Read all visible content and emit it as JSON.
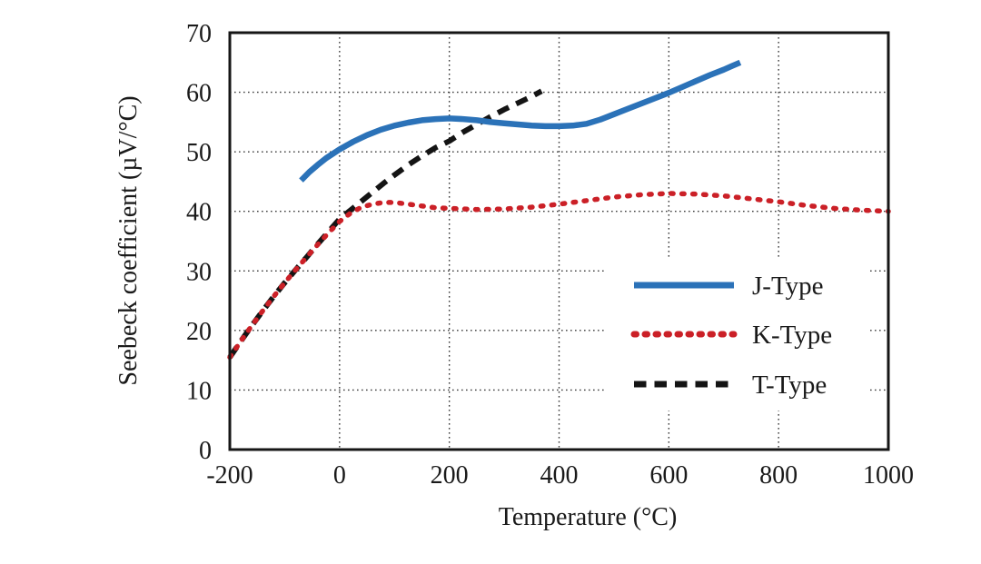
{
  "figure": {
    "background": "#ffffff",
    "description": "Seebeck coefficient versus temperature for J, K and T type thermocouples"
  },
  "chart_data": {
    "type": "line",
    "title": "",
    "xlabel": "Temperature (°C)",
    "ylabel": "Seebeck coefficient (µV/°C)",
    "xlim": [
      -200,
      1000
    ],
    "ylim": [
      0,
      70
    ],
    "xticks": [
      -200,
      0,
      200,
      400,
      600,
      800,
      1000
    ],
    "yticks": [
      0,
      10,
      20,
      30,
      40,
      50,
      60,
      70
    ],
    "grid": true,
    "grid_style": "dotted",
    "legend_position": "inside-right-middle",
    "axis_color": "#161616",
    "grid_color": "#3a3a3a",
    "series": [
      {
        "name": "T-Type",
        "color": "#141414",
        "line": "dashed",
        "width": 6,
        "points": [
          [
            -200,
            15.5
          ],
          [
            -180,
            18.2
          ],
          [
            -160,
            20.8
          ],
          [
            -140,
            23.3
          ],
          [
            -120,
            25.7
          ],
          [
            -100,
            28.0
          ],
          [
            -80,
            30.2
          ],
          [
            -60,
            32.3
          ],
          [
            -40,
            34.5
          ],
          [
            -20,
            36.6
          ],
          [
            0,
            38.7
          ],
          [
            20,
            40.2
          ],
          [
            40,
            41.7
          ],
          [
            60,
            43.2
          ],
          [
            80,
            44.7
          ],
          [
            100,
            46.1
          ],
          [
            125,
            47.8
          ],
          [
            150,
            49.3
          ],
          [
            175,
            50.7
          ],
          [
            200,
            51.8
          ],
          [
            225,
            53.3
          ],
          [
            250,
            54.6
          ],
          [
            275,
            55.9
          ],
          [
            300,
            57.1
          ],
          [
            325,
            58.2
          ],
          [
            350,
            59.3
          ],
          [
            368,
            60.2
          ]
        ]
      },
      {
        "name": "K-Type",
        "color": "#cb2027",
        "line": "dotted",
        "width": 5.5,
        "points": [
          [
            -200,
            15.5
          ],
          [
            -180,
            18.2
          ],
          [
            -160,
            20.8
          ],
          [
            -140,
            23.3
          ],
          [
            -120,
            25.7
          ],
          [
            -100,
            28.0
          ],
          [
            -80,
            30.2
          ],
          [
            -60,
            32.3
          ],
          [
            -40,
            34.4
          ],
          [
            -20,
            36.4
          ],
          [
            0,
            38.3
          ],
          [
            20,
            39.7
          ],
          [
            40,
            40.7
          ],
          [
            60,
            41.2
          ],
          [
            80,
            41.5
          ],
          [
            100,
            41.5
          ],
          [
            125,
            41.2
          ],
          [
            150,
            40.9
          ],
          [
            175,
            40.6
          ],
          [
            200,
            40.5
          ],
          [
            250,
            40.3
          ],
          [
            300,
            40.4
          ],
          [
            350,
            40.7
          ],
          [
            400,
            41.2
          ],
          [
            450,
            41.8
          ],
          [
            500,
            42.4
          ],
          [
            550,
            42.8
          ],
          [
            600,
            43.0
          ],
          [
            650,
            42.9
          ],
          [
            700,
            42.6
          ],
          [
            750,
            42.1
          ],
          [
            800,
            41.6
          ],
          [
            850,
            41.0
          ],
          [
            900,
            40.5
          ],
          [
            950,
            40.2
          ],
          [
            1000,
            40.0
          ]
        ]
      },
      {
        "name": "J-Type",
        "color": "#2b72b8",
        "line": "solid",
        "width": 6.5,
        "points": [
          [
            -70,
            45.2
          ],
          [
            -55,
            46.6
          ],
          [
            -40,
            47.8
          ],
          [
            -25,
            48.9
          ],
          [
            0,
            50.4
          ],
          [
            25,
            51.7
          ],
          [
            50,
            52.8
          ],
          [
            75,
            53.7
          ],
          [
            100,
            54.4
          ],
          [
            125,
            54.9
          ],
          [
            150,
            55.3
          ],
          [
            175,
            55.5
          ],
          [
            200,
            55.6
          ],
          [
            225,
            55.5
          ],
          [
            250,
            55.3
          ],
          [
            275,
            55.0
          ],
          [
            300,
            54.8
          ],
          [
            325,
            54.6
          ],
          [
            350,
            54.4
          ],
          [
            375,
            54.3
          ],
          [
            400,
            54.3
          ],
          [
            425,
            54.4
          ],
          [
            450,
            54.7
          ],
          [
            475,
            55.4
          ],
          [
            500,
            56.3
          ],
          [
            525,
            57.2
          ],
          [
            550,
            58.1
          ],
          [
            575,
            59.0
          ],
          [
            600,
            59.9
          ],
          [
            625,
            60.9
          ],
          [
            650,
            61.9
          ],
          [
            675,
            62.9
          ],
          [
            700,
            63.8
          ],
          [
            715,
            64.4
          ],
          [
            730,
            65.0
          ]
        ]
      }
    ],
    "legend_order": [
      "J-Type",
      "K-Type",
      "T-Type"
    ]
  }
}
